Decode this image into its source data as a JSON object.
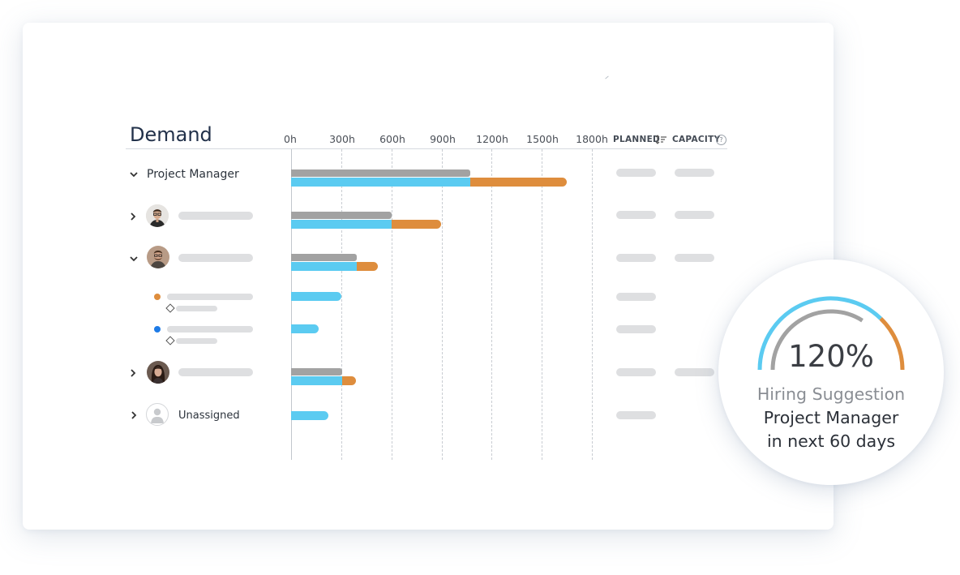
{
  "panel": {
    "title": "Demand",
    "axis_ticks": [
      "0h",
      "300h",
      "600h",
      "900h",
      "1200h",
      "1500h",
      "1800h"
    ],
    "columns": {
      "planned": "PLANNED",
      "capacity": "CAPACITY",
      "help": "?"
    }
  },
  "rows": [
    {
      "label": "Project Manager",
      "expanded": true,
      "planned_hours": 1070,
      "demand_hours": 1070,
      "overflow_hours": 580
    },
    {
      "avatar": "avatar-man-glasses",
      "expanded": false,
      "planned_hours": 600,
      "demand_hours": 600,
      "overflow_hours": 300
    },
    {
      "avatar": "avatar-man-beard",
      "expanded": true,
      "planned_hours": 395,
      "demand_hours": 395,
      "overflow_hours": 125
    },
    {
      "status_color": "#de8d3d",
      "demand_hours": 300
    },
    {
      "status_color": "#1e7be6",
      "demand_hours": 165
    },
    {
      "avatar": "avatar-woman",
      "expanded": false,
      "planned_hours": 305,
      "demand_hours": 305,
      "overflow_hours": 85
    },
    {
      "label": "Unassigned",
      "avatar": "avatar-placeholder",
      "expanded": false,
      "demand_hours": 225
    }
  ],
  "gauge": {
    "percent": "120%",
    "value": 1.2,
    "line1": "Hiring Suggestion",
    "line2": "Project Manager",
    "line3": "in next 60 days"
  },
  "colors": {
    "planned": "#a2a2a2",
    "demand": "#5bcbf1",
    "overflow": "#de8d3d"
  }
}
